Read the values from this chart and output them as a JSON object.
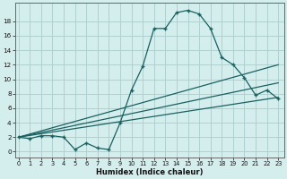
{
  "title": "",
  "xlabel": "Humidex (Indice chaleur)",
  "background_color": "#d4eeee",
  "grid_color": "#b0d0d0",
  "line_color": "#1a6060",
  "yticks": [
    0,
    2,
    4,
    6,
    8,
    10,
    12,
    14,
    16,
    18
  ],
  "xticks": [
    0,
    1,
    2,
    3,
    4,
    5,
    6,
    7,
    8,
    9,
    10,
    11,
    12,
    13,
    14,
    15,
    16,
    17,
    18,
    19,
    20,
    21,
    22,
    23
  ],
  "line1_x": [
    0,
    1,
    2,
    3,
    4,
    5,
    6,
    7,
    8,
    9,
    10,
    11,
    12,
    13,
    14,
    15,
    16,
    17,
    18,
    19,
    20,
    21,
    22,
    23
  ],
  "line1_y": [
    2.0,
    1.8,
    2.2,
    2.2,
    2.0,
    0.3,
    1.2,
    0.5,
    0.3,
    4.0,
    8.5,
    11.8,
    17.0,
    17.0,
    19.2,
    19.5,
    19.0,
    17.0,
    13.0,
    12.0,
    10.2,
    7.8,
    8.5,
    7.3
  ],
  "line2_x": [
    0,
    23
  ],
  "line2_y": [
    2.0,
    12.0
  ],
  "line3_x": [
    0,
    23
  ],
  "line3_y": [
    2.0,
    9.5
  ],
  "line4_x": [
    0,
    23
  ],
  "line4_y": [
    2.0,
    7.5
  ],
  "xlim_min": -0.3,
  "xlim_max": 23.5,
  "ylim_min": -0.8,
  "ylim_max": 20.5
}
